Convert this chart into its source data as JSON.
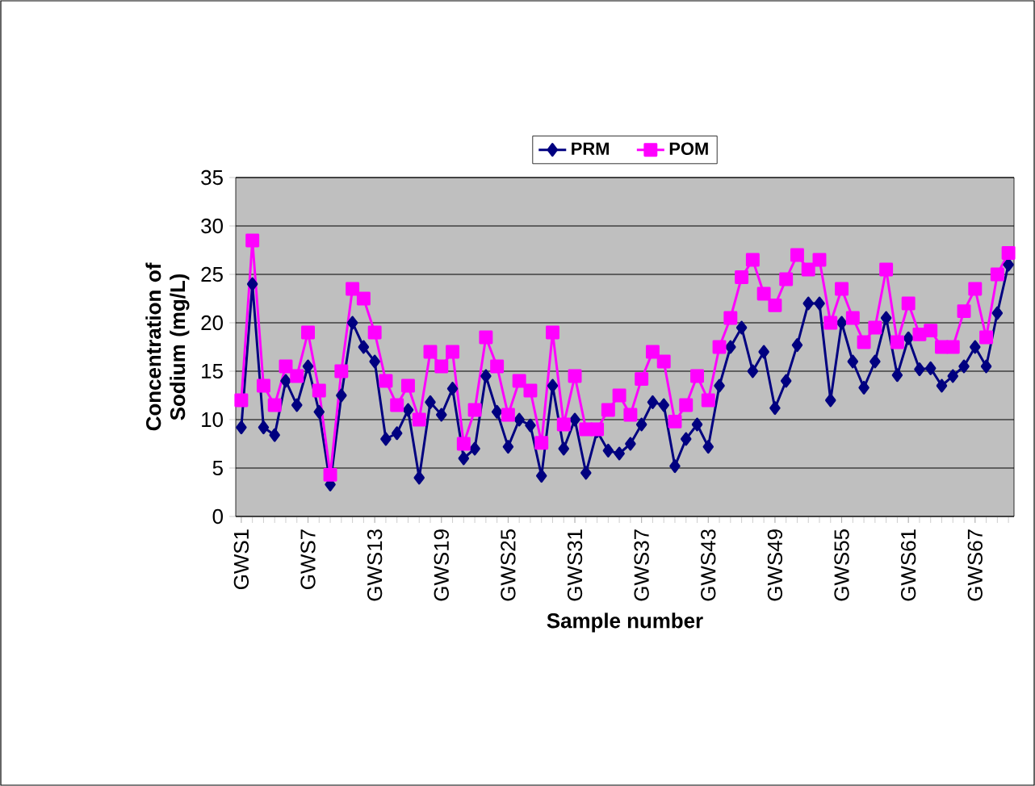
{
  "chart_data": {
    "type": "line",
    "xlabel": "Sample number",
    "ylabel": "Concentration of Sodium (mg/L)",
    "categories": [
      "GWS1",
      null,
      null,
      null,
      null,
      null,
      "GWS7",
      null,
      null,
      null,
      null,
      null,
      "GWS13",
      null,
      null,
      null,
      null,
      null,
      "GWS19",
      null,
      null,
      null,
      null,
      null,
      "GWS25",
      null,
      null,
      null,
      null,
      null,
      "GWS31",
      null,
      null,
      null,
      null,
      null,
      "GWS37",
      null,
      null,
      null,
      null,
      null,
      "GWS43",
      null,
      null,
      null,
      null,
      null,
      "GWS49",
      null,
      null,
      null,
      null,
      null,
      "GWS55",
      null,
      null,
      null,
      null,
      null,
      "GWS61",
      null,
      null,
      null,
      null,
      null,
      "GWS67",
      null,
      null,
      null
    ],
    "ylim": [
      0,
      35
    ],
    "yticks": [
      0,
      5,
      10,
      15,
      20,
      25,
      30,
      35
    ],
    "grid": "y",
    "legend": "top",
    "line_style": "solid",
    "series": [
      {
        "name": "PRM",
        "color": "#000080",
        "marker": "diamond",
        "values": [
          9.2,
          24,
          9.2,
          8.4,
          14,
          11.5,
          15.5,
          10.8,
          3.3,
          12.5,
          20,
          17.5,
          16,
          8,
          8.6,
          11,
          4,
          11.8,
          10.5,
          13.2,
          6,
          7,
          14.5,
          10.8,
          7.2,
          10,
          9.4,
          4.2,
          13.5,
          7,
          10,
          4.5,
          8.8,
          6.8,
          6.5,
          7.5,
          9.5,
          11.8,
          11.5,
          5.2,
          8,
          9.5,
          7.2,
          13.5,
          17.5,
          19.5,
          15,
          17,
          11.2,
          14,
          17.7,
          22,
          22,
          12,
          20,
          16,
          13.3,
          16,
          20.5,
          14.6,
          18.4,
          15.2,
          15.3,
          13.5,
          14.5,
          15.5,
          17.5,
          15.5,
          21,
          26
        ]
      },
      {
        "name": "POM",
        "color": "#ff00ff",
        "marker": "square",
        "values": [
          12,
          28.5,
          13.5,
          11.5,
          15.5,
          14.5,
          19,
          13,
          4.3,
          15,
          23.5,
          22.5,
          19,
          14,
          11.5,
          13.5,
          10,
          17,
          15.5,
          17,
          7.5,
          11,
          18.5,
          15.5,
          10.5,
          14,
          13,
          7.6,
          19,
          9.5,
          14.5,
          9,
          9,
          11,
          12.5,
          10.5,
          14.2,
          17,
          16,
          9.8,
          11.5,
          14.5,
          12,
          17.5,
          20.5,
          24.7,
          26.5,
          23,
          21.8,
          24.5,
          27,
          25.5,
          26.5,
          20,
          23.5,
          20.5,
          18,
          19.5,
          25.5,
          18,
          22,
          18.8,
          19.2,
          17.5,
          17.5,
          21.2,
          23.5,
          18.5,
          25,
          27.2
        ]
      }
    ]
  }
}
